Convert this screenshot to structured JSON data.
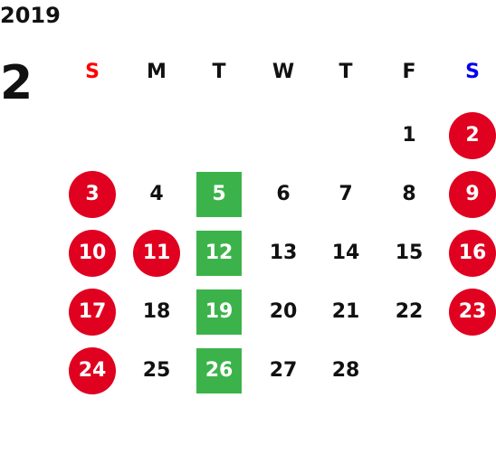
{
  "calendar": {
    "year": "2019",
    "month": "2",
    "weekdays": [
      "S",
      "M",
      "T",
      "W",
      "T",
      "F",
      "S"
    ],
    "first_weekday_index": 5,
    "days_in_month": 28,
    "colors": {
      "sunday_header": "#ff0000",
      "saturday_header": "#0000ee",
      "holiday_circle": "#e0001f",
      "closed_square": "#3cb34a",
      "text": "#111111"
    },
    "holidays": [
      2,
      3,
      9,
      10,
      11,
      16,
      17,
      23,
      24
    ],
    "closed_days": [
      5,
      12,
      19,
      26
    ]
  }
}
